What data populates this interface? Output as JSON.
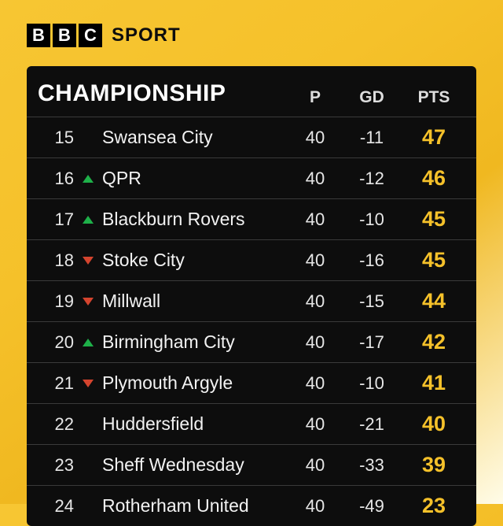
{
  "brand": {
    "blocks": [
      "B",
      "B",
      "C"
    ],
    "word": "SPORT"
  },
  "table": {
    "title": "CHAMPIONSHIP",
    "columns": {
      "p": "P",
      "gd": "GD",
      "pts": "PTS"
    },
    "pts_color": "#f5c12a",
    "up_color": "#1eb049",
    "down_color": "#d4442e",
    "background": "#0d0d0d",
    "row_border": "#3a3a3a",
    "rows": [
      {
        "pos": "15",
        "move": "none",
        "team": "Swansea City",
        "p": "40",
        "gd": "-11",
        "pts": "47"
      },
      {
        "pos": "16",
        "move": "up",
        "team": "QPR",
        "p": "40",
        "gd": "-12",
        "pts": "46"
      },
      {
        "pos": "17",
        "move": "up",
        "team": "Blackburn Rovers",
        "p": "40",
        "gd": "-10",
        "pts": "45"
      },
      {
        "pos": "18",
        "move": "down",
        "team": "Stoke City",
        "p": "40",
        "gd": "-16",
        "pts": "45"
      },
      {
        "pos": "19",
        "move": "down",
        "team": "Millwall",
        "p": "40",
        "gd": "-15",
        "pts": "44"
      },
      {
        "pos": "20",
        "move": "up",
        "team": "Birmingham City",
        "p": "40",
        "gd": "-17",
        "pts": "42"
      },
      {
        "pos": "21",
        "move": "down",
        "team": "Plymouth Argyle",
        "p": "40",
        "gd": "-10",
        "pts": "41"
      },
      {
        "pos": "22",
        "move": "none",
        "team": "Huddersfield",
        "p": "40",
        "gd": "-21",
        "pts": "40"
      },
      {
        "pos": "23",
        "move": "none",
        "team": "Sheff Wednesday",
        "p": "40",
        "gd": "-33",
        "pts": "39"
      },
      {
        "pos": "24",
        "move": "none",
        "team": "Rotherham United",
        "p": "40",
        "gd": "-49",
        "pts": "23"
      }
    ]
  }
}
